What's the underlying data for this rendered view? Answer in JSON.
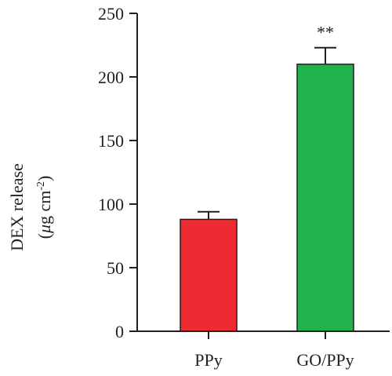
{
  "chart_data": {
    "type": "bar",
    "categories": [
      "PPy",
      "GO/PPy"
    ],
    "values": [
      88,
      210
    ],
    "errors": [
      6,
      13
    ],
    "significance": [
      "",
      "**"
    ],
    "colors": [
      "#ee2a33",
      "#22b24c"
    ],
    "ylabel_line1": "DEX release",
    "ylabel_line2_prefix": "(",
    "ylabel_line2_mu": "μ",
    "ylabel_line2_rest": "g cm",
    "ylabel_line2_sup": "-2",
    "ylabel_line2_suffix": ")",
    "ylim": [
      0,
      250
    ],
    "yticks": [
      "0",
      "50",
      "100",
      "150",
      "200",
      "250"
    ],
    "grid": false
  }
}
